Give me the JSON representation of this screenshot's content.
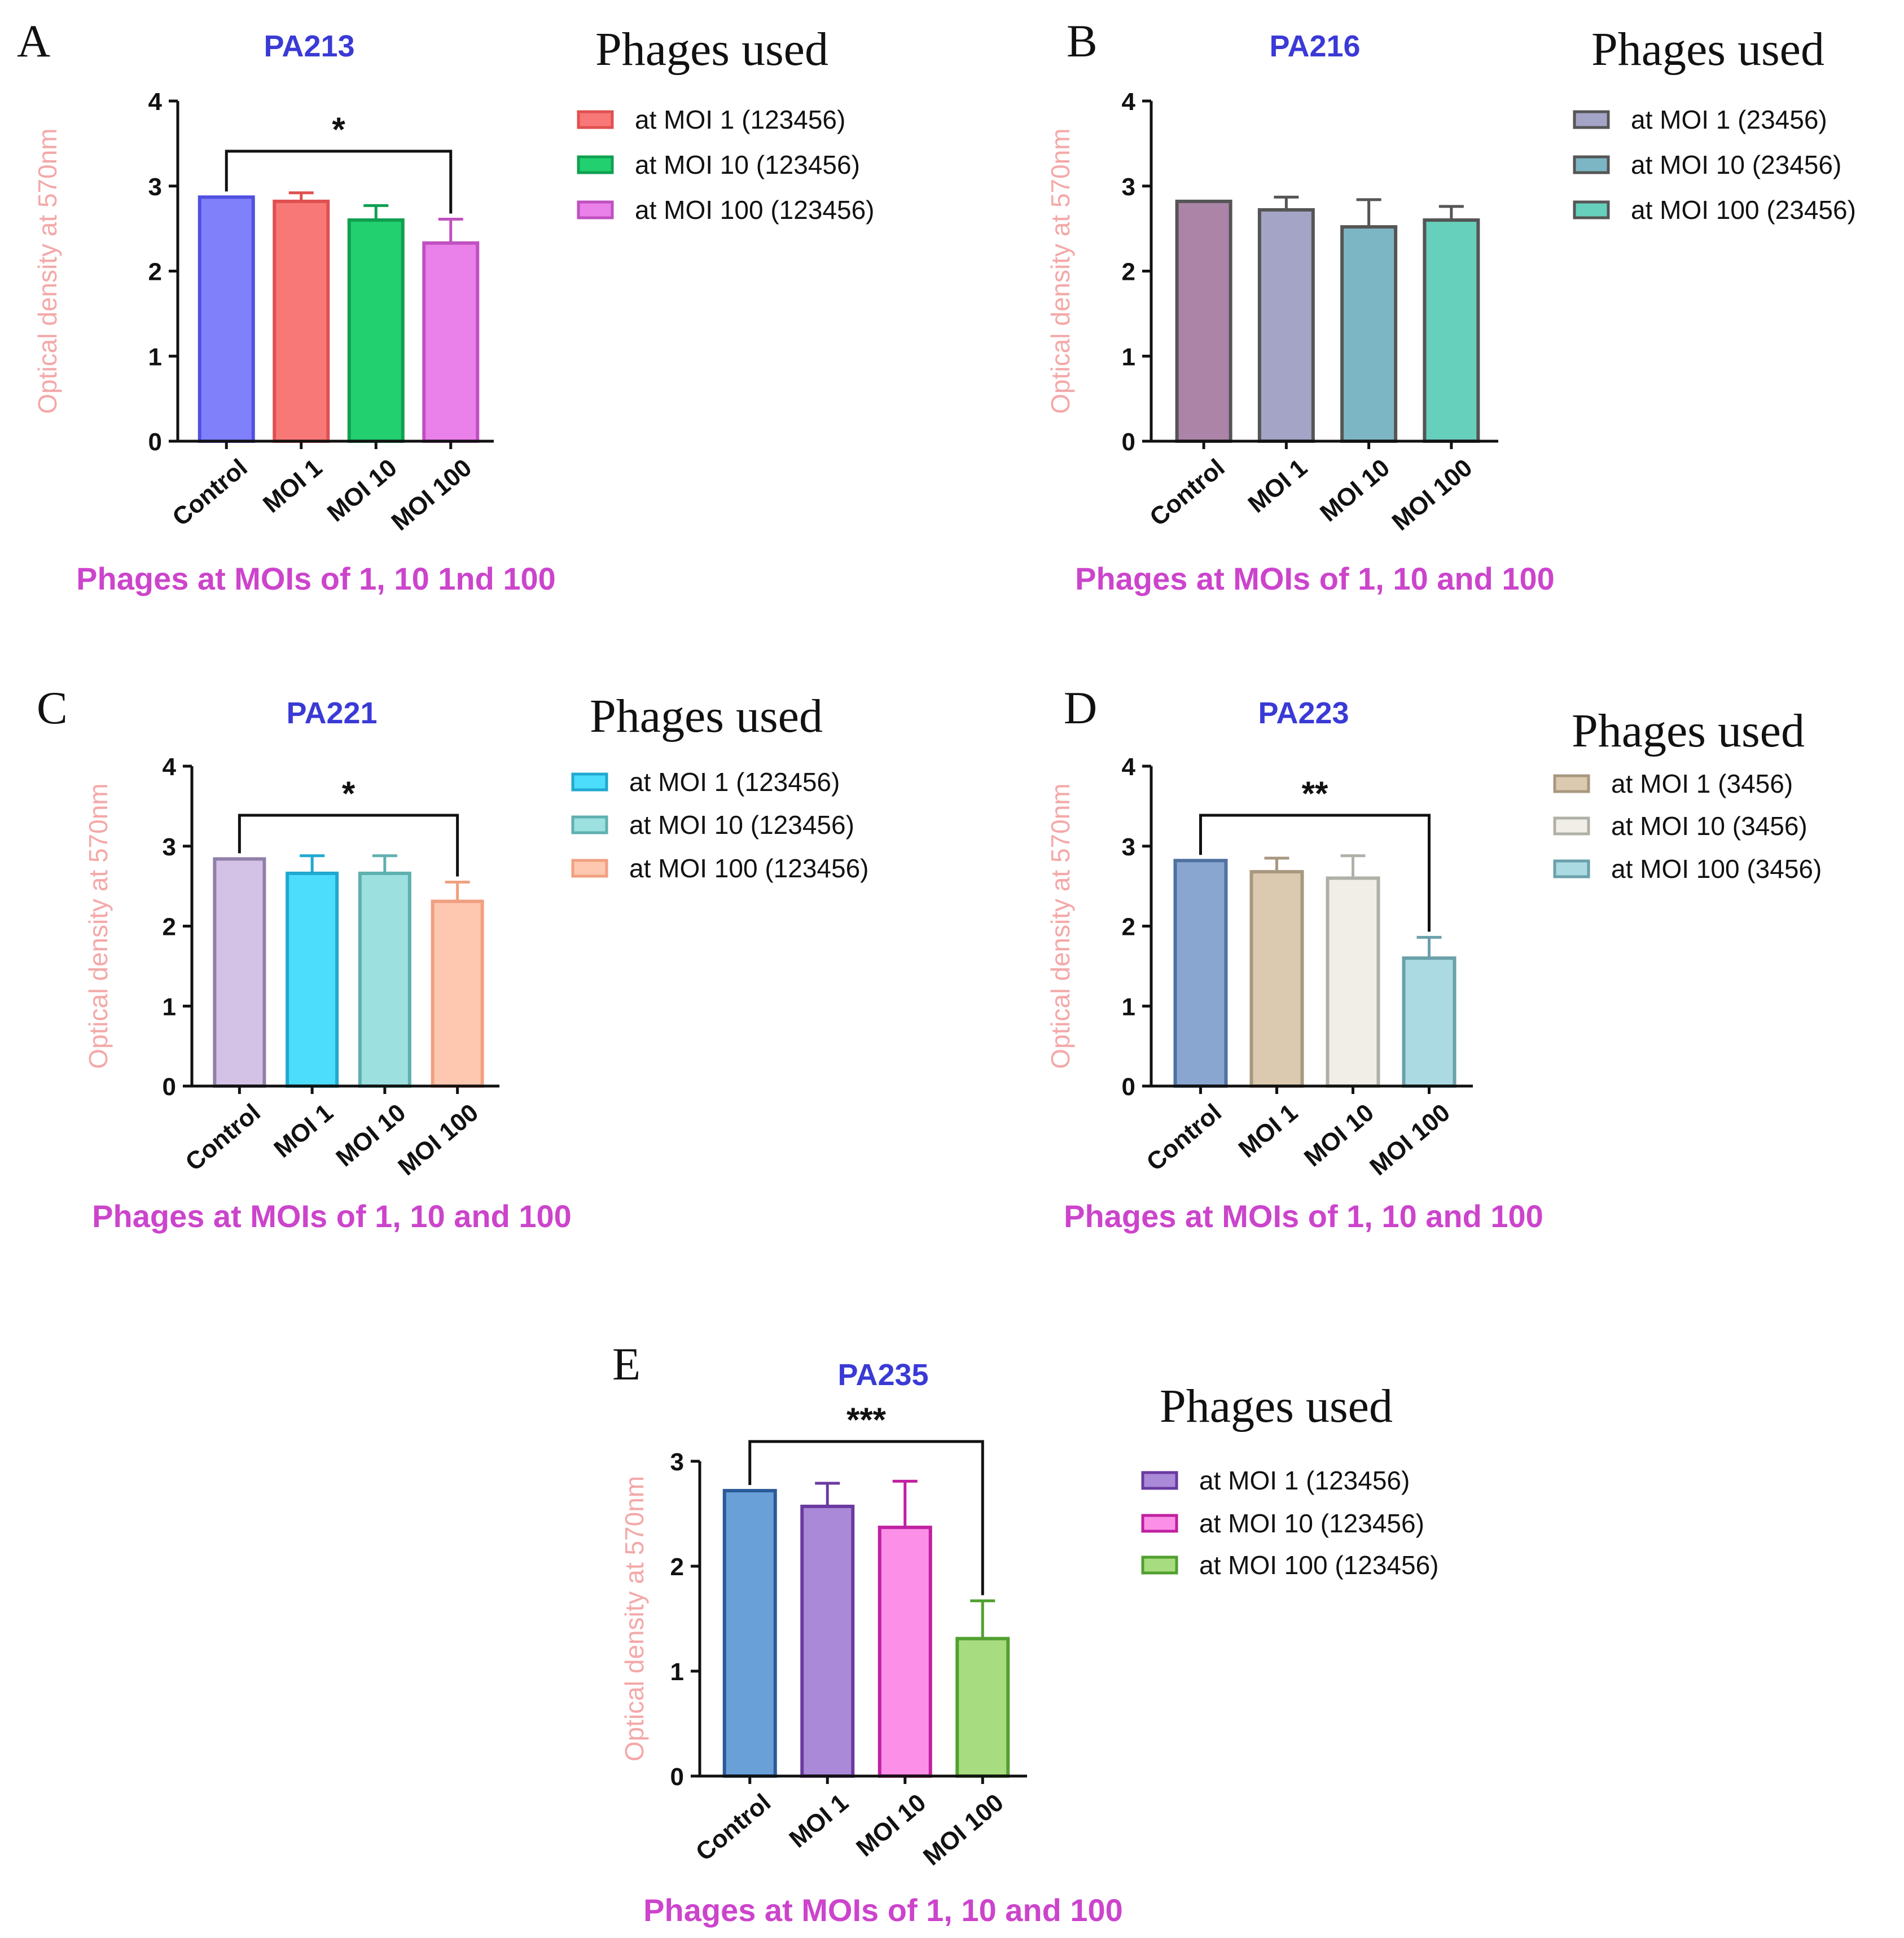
{
  "figure": {
    "legend_heading": "Phages used",
    "colors": {
      "title": "#3a3ad6",
      "ylabel": "#f4a8a8",
      "xlabel": "#cc44cc",
      "axis": "#111111"
    }
  },
  "chart_data": [
    {
      "panel": "A",
      "type": "bar",
      "title": "PA213",
      "ylabel": "Optical density at 570nm",
      "xlabel": "Phages at MOIs of 1, 10 1nd 100",
      "categories": [
        "Control",
        "MOI 1",
        "MOI 10",
        "MOI 100"
      ],
      "values": [
        2.87,
        2.82,
        2.6,
        2.33
      ],
      "errors": [
        0,
        0.1,
        0.17,
        0.28
      ],
      "ylim": [
        0,
        4
      ],
      "yticks": [
        "0",
        "1",
        "2",
        "3",
        "4"
      ],
      "colors": [
        "#8080fa",
        "#f87878",
        "#22d070",
        "#ea80ea"
      ],
      "edge_colors": [
        "#5050e0",
        "#e05050",
        "#10a050",
        "#c050c0"
      ],
      "significance": {
        "label": "*",
        "from": 0,
        "to": 3
      },
      "legend": [
        "at MOI 1 (123456)",
        "at MOI 10 (123456)",
        "at MOI 100 (123456)"
      ],
      "legend_colors": [
        "#f87878",
        "#22d070",
        "#ea80ea"
      ]
    },
    {
      "panel": "B",
      "type": "bar",
      "title": "PA216",
      "ylabel": "Optical density at 570nm",
      "xlabel": "Phages at MOIs of 1, 10 and 100",
      "categories": [
        "Control",
        "MOI 1",
        "MOI 10",
        "MOI 100"
      ],
      "values": [
        2.82,
        2.72,
        2.52,
        2.6
      ],
      "errors": [
        0,
        0.15,
        0.32,
        0.16
      ],
      "ylim": [
        0,
        4
      ],
      "yticks": [
        "0",
        "1",
        "2",
        "3",
        "4"
      ],
      "colors": [
        "#ab84a8",
        "#a4a4c6",
        "#7cb6c4",
        "#66d0bc"
      ],
      "edge_colors": [
        "#555555",
        "#555555",
        "#555555",
        "#555555"
      ],
      "significance": null,
      "legend": [
        "at MOI 1 (23456)",
        "at MOI 10 (23456)",
        "at MOI 100 (23456)"
      ],
      "legend_colors": [
        "#a4a4c6",
        "#7cb6c4",
        "#66d0bc"
      ]
    },
    {
      "panel": "C",
      "type": "bar",
      "title": "PA221",
      "ylabel": "Optical density at 570nm",
      "xlabel": "Phages at MOIs of 1, 10 and 100",
      "categories": [
        "Control",
        "MOI 1",
        "MOI 10",
        "MOI 100"
      ],
      "values": [
        2.84,
        2.66,
        2.66,
        2.31
      ],
      "errors": [
        0,
        0.22,
        0.22,
        0.24
      ],
      "ylim": [
        0,
        4
      ],
      "yticks": [
        "0",
        "1",
        "2",
        "3",
        "4"
      ],
      "colors": [
        "#d4c2e6",
        "#4cdcfc",
        "#9ce0e0",
        "#fec8b0"
      ],
      "edge_colors": [
        "#9080a8",
        "#20a8d0",
        "#60b0b0",
        "#f0a080"
      ],
      "significance": {
        "label": "*",
        "from": 0,
        "to": 3
      },
      "legend": [
        "at MOI 1 (123456)",
        "at MOI 10 (123456)",
        "at MOI 100 (123456)"
      ],
      "legend_colors": [
        "#4cdcfc",
        "#9ce0e0",
        "#fec8b0"
      ]
    },
    {
      "panel": "D",
      "type": "bar",
      "title": "PA223",
      "ylabel": "Optical density at 570nm",
      "xlabel": "Phages at MOIs of 1, 10 and 100",
      "categories": [
        "Control",
        "MOI 1",
        "MOI 10",
        "MOI 100"
      ],
      "values": [
        2.82,
        2.68,
        2.6,
        1.6
      ],
      "errors": [
        0,
        0.17,
        0.28,
        0.26
      ],
      "ylim": [
        0,
        4
      ],
      "yticks": [
        "0",
        "1",
        "2",
        "3",
        "4"
      ],
      "colors": [
        "#88a6d0",
        "#dccab0",
        "#f0eee6",
        "#acdae2"
      ],
      "edge_colors": [
        "#5070a0",
        "#a89880",
        "#b0b0a8",
        "#6aa0aa"
      ],
      "significance": {
        "label": "**",
        "from": 0,
        "to": 3
      },
      "legend": [
        "at MOI 1 (3456)",
        "at MOI 10 (3456)",
        "at MOI 100 (3456)"
      ],
      "legend_colors": [
        "#dccab0",
        "#f0eee6",
        "#acdae2"
      ]
    },
    {
      "panel": "E",
      "type": "bar",
      "title": "PA235",
      "ylabel": "Optical density at 570nm",
      "xlabel": "Phages at MOIs of 1, 10 and 100",
      "categories": [
        "Control",
        "MOI 1",
        "MOI 10",
        "MOI 100"
      ],
      "values": [
        2.72,
        2.57,
        2.37,
        1.31
      ],
      "errors": [
        0,
        0.22,
        0.44,
        0.36
      ],
      "ylim": [
        0,
        3
      ],
      "yticks": [
        "0",
        "1",
        "2",
        "3"
      ],
      "colors": [
        "#6aa0d8",
        "#aa8ad8",
        "#fc90e8",
        "#a8dc80"
      ],
      "edge_colors": [
        "#2a5a98",
        "#6a3aa0",
        "#c020a0",
        "#50a030"
      ],
      "significance": {
        "label": "***",
        "from": 0,
        "to": 3
      },
      "legend": [
        "at MOI 1 (123456)",
        "at MOI 10 (123456)",
        "at MOI 100 (123456)"
      ],
      "legend_colors": [
        "#aa8ad8",
        "#fc90e8",
        "#a8dc80"
      ]
    }
  ]
}
